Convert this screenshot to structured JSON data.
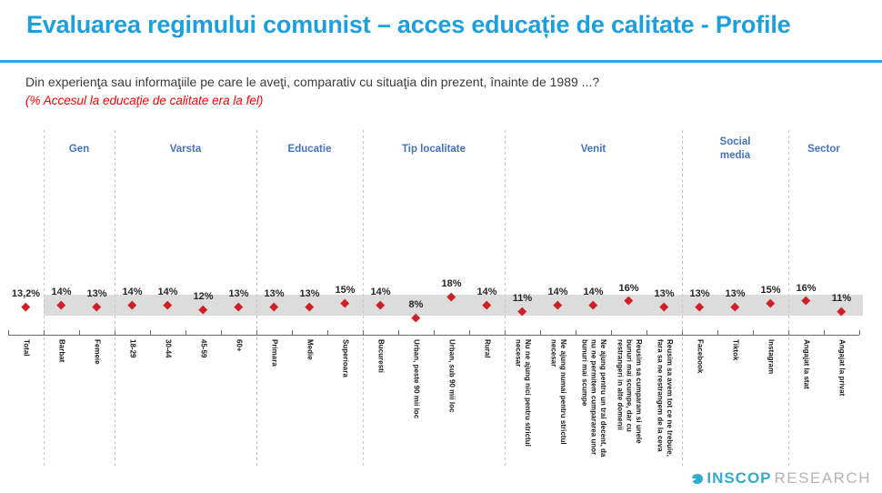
{
  "title": "Evaluarea regimului comunist – acces educație de calitate - Profile",
  "question": "Din experienţa sau informaţiile pe care le aveţi, comparativ cu situaţia din prezent, înainte de 1989 ...?",
  "note": "(% Accesul la educaţie de calitate era la fel)",
  "logo": {
    "icon": "inscop-bird-icon",
    "name": "INSCOP",
    "suffix": "RESEARCH"
  },
  "colors": {
    "title_blue": "#1B9FDE",
    "rule_blue": "#29A9E1",
    "group_header_blue": "#4472C4",
    "note_red": "#FF0000",
    "marker_red": "#CE2026",
    "band_gray": "#DCDCDC",
    "logo_teal": "#2FAECB",
    "logo_gray": "#B5B5B5"
  },
  "chart_data": {
    "type": "scatter",
    "marker_shape": "diamond",
    "ylim": [
      7,
      20
    ],
    "grid": false,
    "legend": false,
    "highlight_band": {
      "color": "#DCDCDC",
      "pct_range": [
        9,
        18.4
      ]
    },
    "groups": [
      {
        "label": "Gen",
        "start": 1,
        "count": 2
      },
      {
        "label": "Varsta",
        "start": 3,
        "count": 4
      },
      {
        "label": "Educatie",
        "start": 7,
        "count": 3
      },
      {
        "label": "Tip localitate",
        "start": 10,
        "count": 4
      },
      {
        "label": "Venit",
        "start": 14,
        "count": 5
      },
      {
        "label": "Social\nmedia",
        "start": 19,
        "count": 3
      },
      {
        "label": "Sector",
        "start": 22,
        "count": 2
      }
    ],
    "points": [
      {
        "label": "Total",
        "group": "Total",
        "value": 13.2,
        "display": "13,2%"
      },
      {
        "label": "Barbat",
        "group": "Gen",
        "value": 14,
        "display": "14%"
      },
      {
        "label": "Femeie",
        "group": "Gen",
        "value": 13,
        "display": "13%"
      },
      {
        "label": "18-29",
        "group": "Varsta",
        "value": 14,
        "display": "14%"
      },
      {
        "label": "30-44",
        "group": "Varsta",
        "value": 14,
        "display": "14%"
      },
      {
        "label": "45-59",
        "group": "Varsta",
        "value": 12,
        "display": "12%"
      },
      {
        "label": "60+",
        "group": "Varsta",
        "value": 13,
        "display": "13%"
      },
      {
        "label": "Primara",
        "group": "Educatie",
        "value": 13,
        "display": "13%"
      },
      {
        "label": "Medie",
        "group": "Educatie",
        "value": 13,
        "display": "13%"
      },
      {
        "label": "Superioara",
        "group": "Educatie",
        "value": 15,
        "display": "15%"
      },
      {
        "label": "Bucuresti",
        "group": "Tip localitate",
        "value": 14,
        "display": "14%"
      },
      {
        "label": "Urban, peste 90 mii loc",
        "group": "Tip localitate",
        "value": 8,
        "display": "8%"
      },
      {
        "label": "Urban, sub 90 mii loc",
        "group": "Tip localitate",
        "value": 18,
        "display": "18%"
      },
      {
        "label": "Rural",
        "group": "Tip localitate",
        "value": 14,
        "display": "14%"
      },
      {
        "label": "Nu ne ajung nici pentru strictul\nnecesar",
        "group": "Venit",
        "value": 11,
        "display": "11%"
      },
      {
        "label": "Ne ajung numai pentru strictul\nnecesar",
        "group": "Venit",
        "value": 14,
        "display": "14%"
      },
      {
        "label": "Ne ajung pentru un trai decent, da\nnu ne permitem cumpararea unor\nbunuri mai scumpe",
        "group": "Venit",
        "value": 14,
        "display": "14%"
      },
      {
        "label": "Reusim sa cumparam si unele\nbunuri mai scumpe, dar cu\nrestrangeri in alte domenii",
        "group": "Venit",
        "value": 16,
        "display": "16%"
      },
      {
        "label": "Reusim sa avem tot ce ne trebuie,\nfara sa ne restrangem de la ceva",
        "group": "Venit",
        "value": 13,
        "display": "13%"
      },
      {
        "label": "Facebook",
        "group": "Social media",
        "value": 13,
        "display": "13%"
      },
      {
        "label": "Tiktok",
        "group": "Social media",
        "value": 13,
        "display": "13%"
      },
      {
        "label": "Instagram",
        "group": "Social media",
        "value": 15,
        "display": "15%"
      },
      {
        "label": "Angajat la stat",
        "group": "Sector",
        "value": 16,
        "display": "16%"
      },
      {
        "label": "Angajat la privat",
        "group": "Sector",
        "value": 11,
        "display": "11%"
      }
    ]
  }
}
